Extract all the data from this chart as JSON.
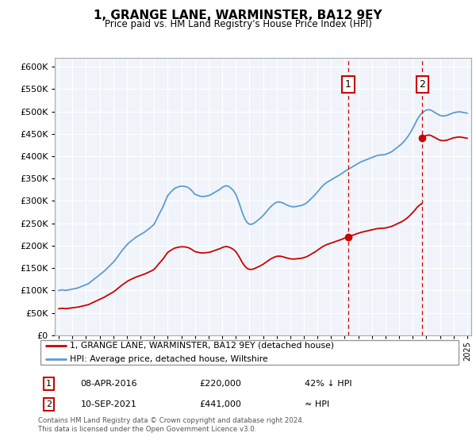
{
  "title": "1, GRANGE LANE, WARMINSTER, BA12 9EY",
  "subtitle": "Price paid vs. HM Land Registry's House Price Index (HPI)",
  "legend_line1": "1, GRANGE LANE, WARMINSTER, BA12 9EY (detached house)",
  "legend_line2": "HPI: Average price, detached house, Wiltshire",
  "footnote": "Contains HM Land Registry data © Crown copyright and database right 2024.\nThis data is licensed under the Open Government Licence v3.0.",
  "sale1_date": "08-APR-2016",
  "sale1_price": 220000,
  "sale1_label": "42% ↓ HPI",
  "sale2_date": "10-SEP-2021",
  "sale2_price": 441000,
  "sale2_label": "≈ HPI",
  "sale1_year": 2016.27,
  "sale2_year": 2021.71,
  "hpi_color": "#5b9bd5",
  "sale_color": "#cc0000",
  "marker1_price": 220000,
  "marker2_price": 441000,
  "ylim": [
    0,
    620000
  ],
  "xlim_start": 1994.7,
  "xlim_end": 2025.3,
  "background_color": "#f0f4fa"
}
